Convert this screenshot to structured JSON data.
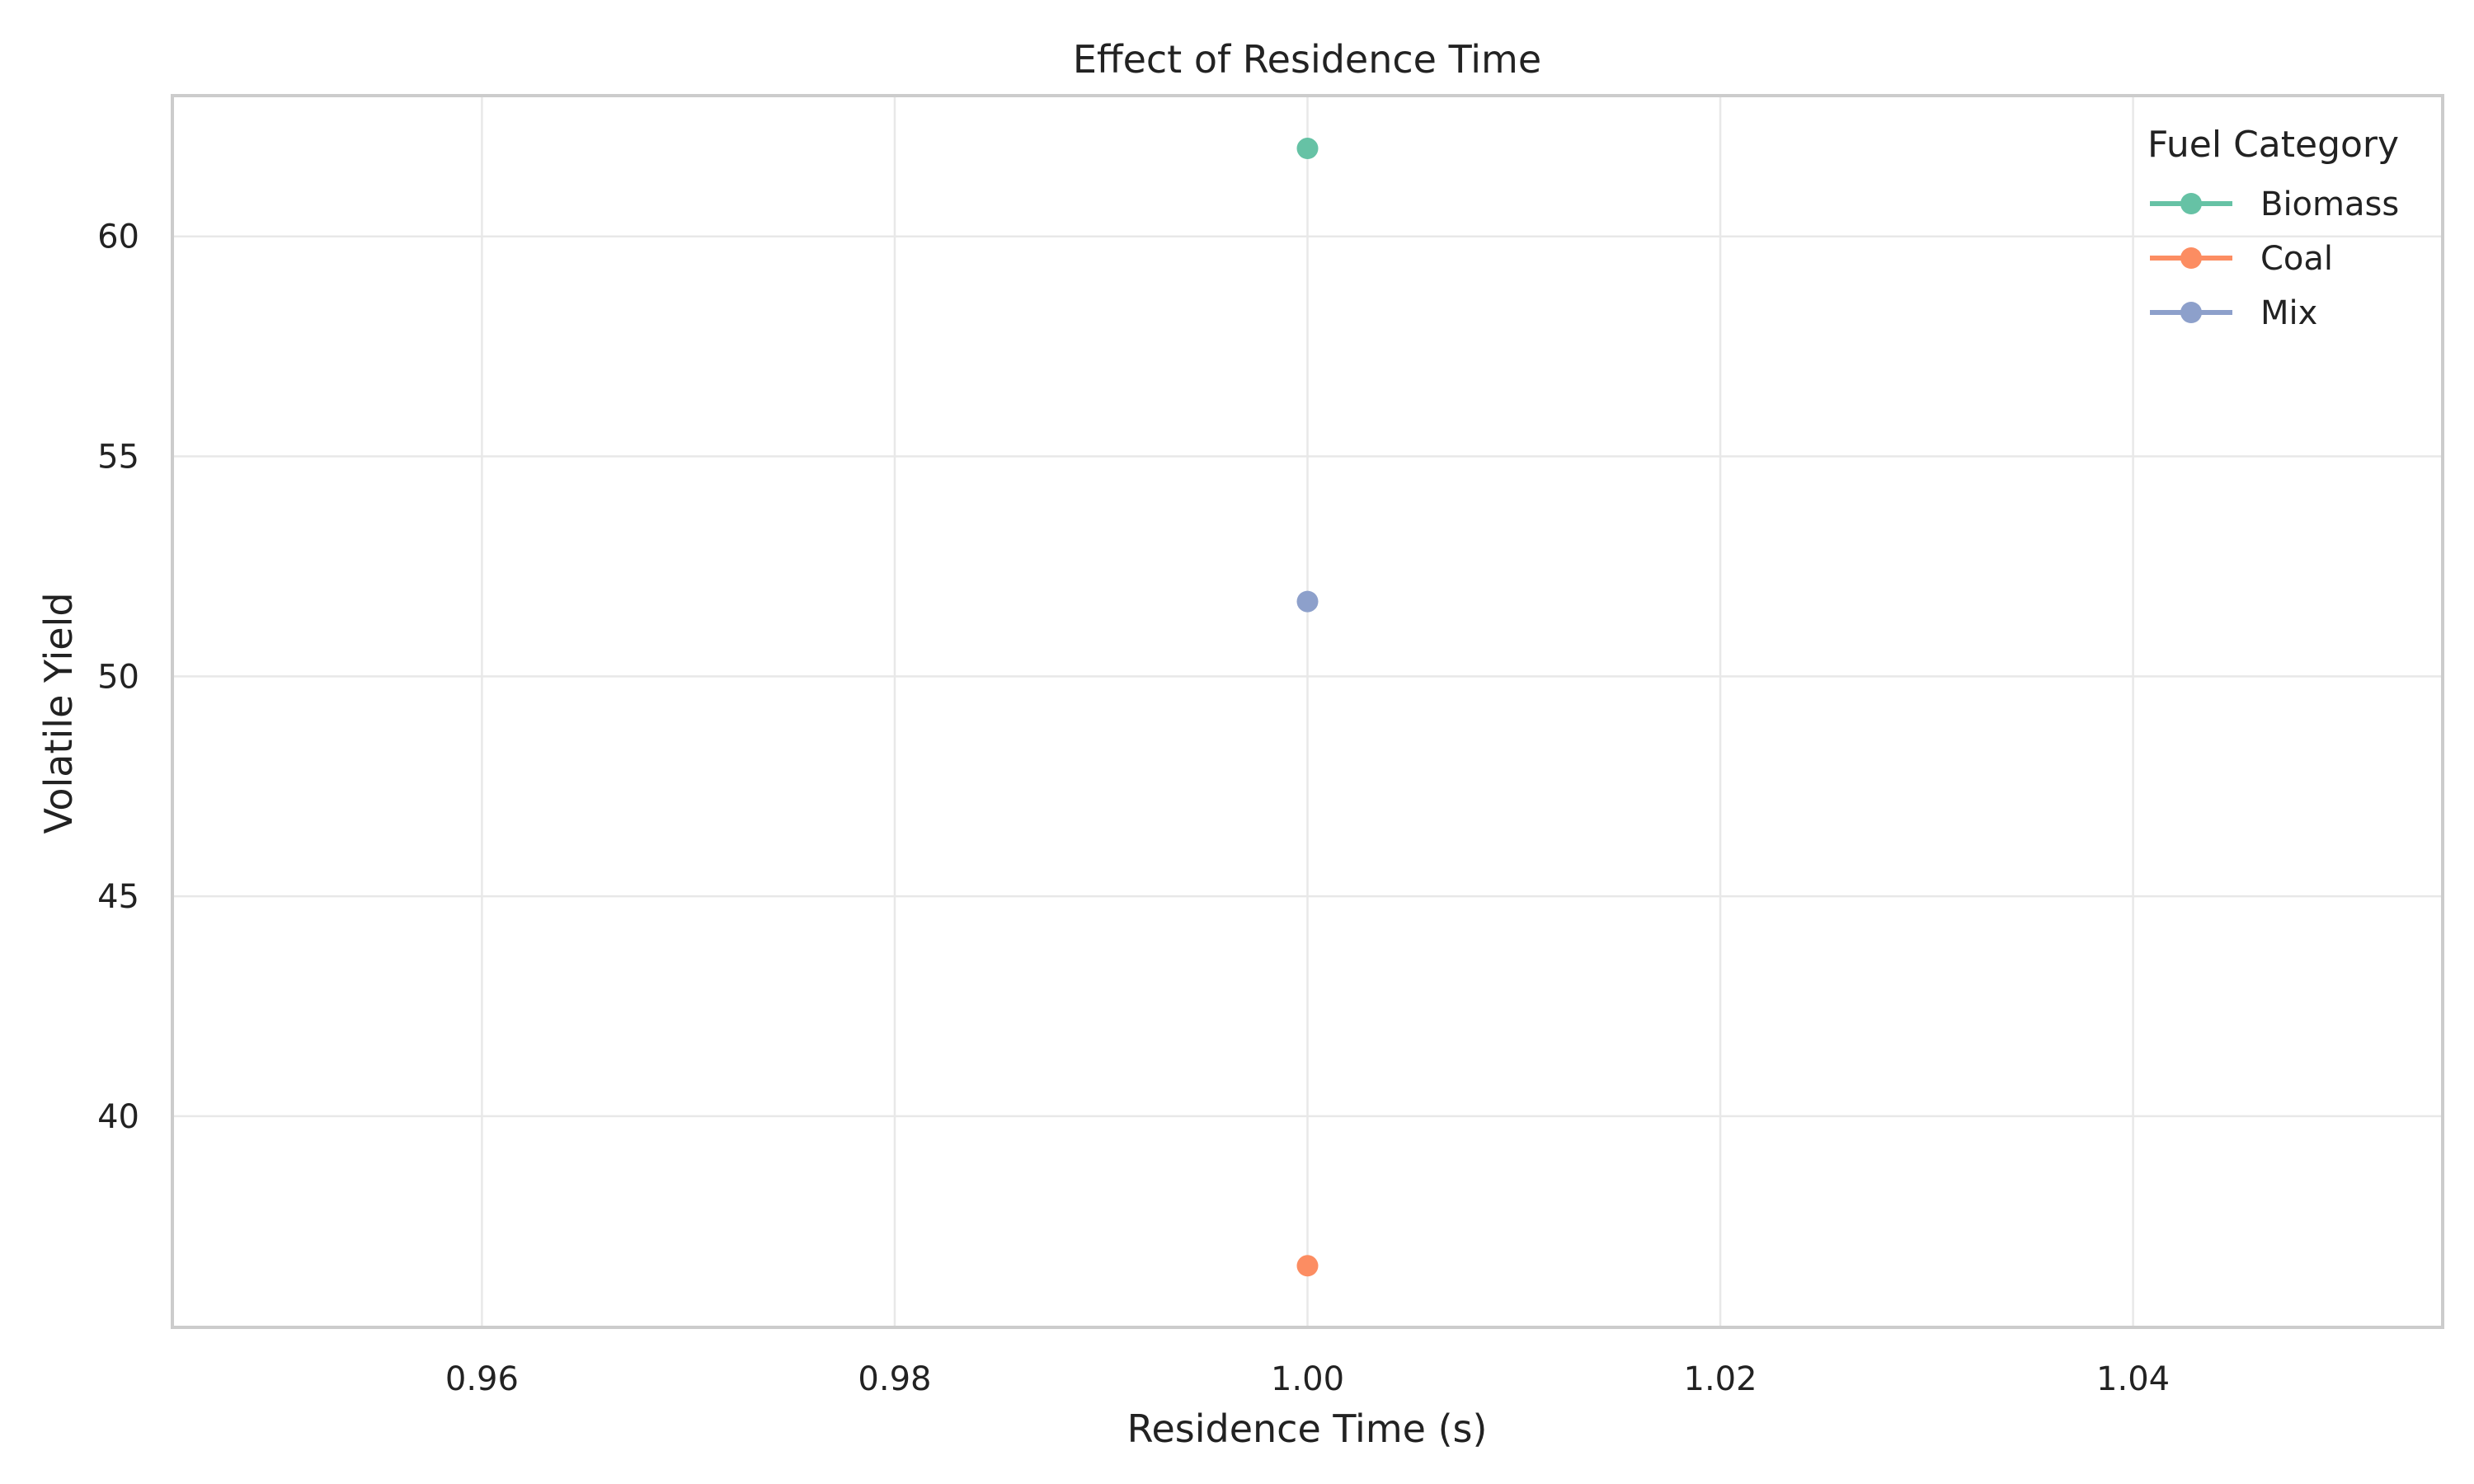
{
  "chart_data": {
    "type": "scatter",
    "title": "Effect of Residence Time",
    "xlabel": "Residence Time (s)",
    "ylabel": "Volatile Yield",
    "xlim": [
      0.945,
      1.055
    ],
    "ylim": [
      35.2,
      63.2
    ],
    "xticks": [
      0.96,
      0.98,
      1.0,
      1.02,
      1.04
    ],
    "xtick_labels": [
      "0.96",
      "0.98",
      "1.00",
      "1.02",
      "1.04"
    ],
    "yticks": [
      40,
      45,
      50,
      55,
      60
    ],
    "ytick_labels": [
      "40",
      "45",
      "50",
      "55",
      "60"
    ],
    "grid": true,
    "legend": {
      "title": "Fuel Category",
      "placement": "top-right"
    },
    "series": [
      {
        "name": "Biomass",
        "color": "#66c2a5",
        "x": [
          1.0
        ],
        "y": [
          62.0
        ]
      },
      {
        "name": "Coal",
        "color": "#fc8d62",
        "x": [
          1.0
        ],
        "y": [
          36.6
        ]
      },
      {
        "name": "Mix",
        "color": "#8da0cb",
        "x": [
          1.0
        ],
        "y": [
          51.7
        ]
      }
    ]
  }
}
